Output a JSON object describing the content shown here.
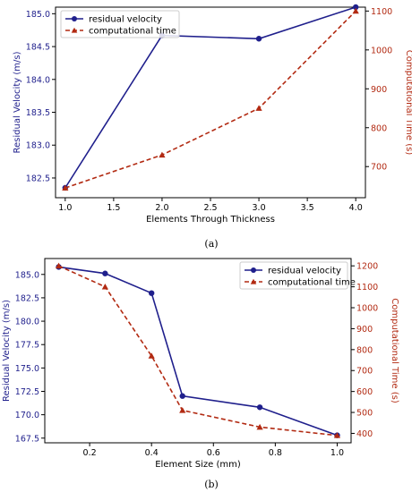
{
  "chart_data": [
    {
      "type": "line",
      "panel_label": "(a)",
      "xlabel": "Elements Through Thickness",
      "ylabel": "Residual Velocity (m/s)",
      "y2label": "Computational Time (s)",
      "x": [
        1.0,
        2.0,
        3.0,
        4.0
      ],
      "xlim": [
        0.9,
        4.1
      ],
      "xticks": [
        1.0,
        1.5,
        2.0,
        2.5,
        3.0,
        3.5,
        4.0
      ],
      "ylim": [
        182.2,
        185.1
      ],
      "yticks": [
        182.5,
        183.0,
        183.5,
        184.0,
        184.5,
        185.0
      ],
      "y2lim": [
        620,
        1110
      ],
      "y2ticks": [
        700,
        800,
        900,
        1000,
        1100
      ],
      "grid": false,
      "legend_position": "top-left",
      "series": [
        {
          "name": "residual velocity",
          "axis": "left",
          "color": "#1f1f8c",
          "marker": "circle",
          "style": "solid",
          "values": [
            182.35,
            184.67,
            184.62,
            185.1
          ]
        },
        {
          "name": "computational time",
          "axis": "right",
          "color": "#b22a12",
          "marker": "triangle",
          "style": "dashed",
          "values": [
            645,
            730,
            850,
            1100
          ]
        }
      ]
    },
    {
      "type": "line",
      "panel_label": "(b)",
      "xlabel": "Element Size (mm)",
      "ylabel": "Residual Velocity (m/s)",
      "y2label": "Computational Time (s)",
      "x": [
        0.1,
        0.25,
        0.4,
        0.5,
        0.75,
        1.0
      ],
      "xlim": [
        0.055,
        1.045
      ],
      "xticks": [
        0.2,
        0.4,
        0.6,
        0.8,
        1.0
      ],
      "ylim": [
        167.0,
        186.7
      ],
      "yticks": [
        167.5,
        170.0,
        172.5,
        175.0,
        177.5,
        180.0,
        182.5,
        185.0
      ],
      "y2lim": [
        355,
        1235
      ],
      "y2ticks": [
        400,
        500,
        600,
        700,
        800,
        900,
        1000,
        1100,
        1200
      ],
      "grid": false,
      "legend_position": "top-right",
      "series": [
        {
          "name": "residual velocity",
          "axis": "left",
          "color": "#1f1f8c",
          "marker": "circle",
          "style": "solid",
          "values": [
            185.8,
            185.1,
            183.0,
            172.0,
            170.8,
            167.8
          ]
        },
        {
          "name": "computational time",
          "axis": "right",
          "color": "#b22a12",
          "marker": "triangle",
          "style": "dashed",
          "values": [
            1200,
            1100,
            770,
            510,
            430,
            390
          ]
        }
      ]
    }
  ],
  "colors": {
    "left_axis": "#1f1f8c",
    "right_axis": "#b22a12"
  }
}
